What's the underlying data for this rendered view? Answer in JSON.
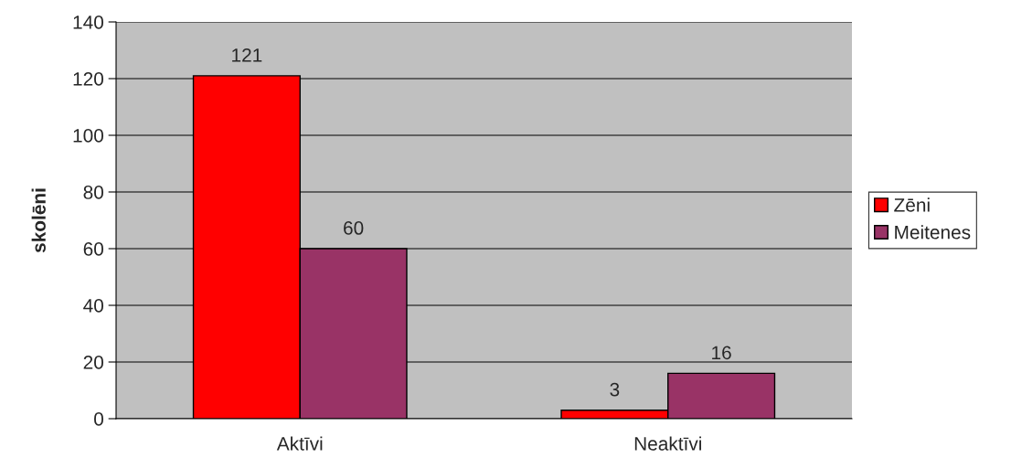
{
  "chart_data": {
    "type": "bar",
    "ylabel": "skolēni",
    "categories": [
      "Aktīvi",
      "Neaktīvi"
    ],
    "series": [
      {
        "name": "Zēni",
        "color": "#ff0000",
        "values": [
          121,
          3
        ]
      },
      {
        "name": "Meitenes",
        "color": "#993366",
        "values": [
          60,
          16
        ]
      }
    ],
    "ylim": [
      0,
      140
    ],
    "yticks": [
      0,
      20,
      40,
      60,
      80,
      100,
      120,
      140
    ],
    "grid": "y",
    "legend": "right",
    "data_labels": true
  }
}
